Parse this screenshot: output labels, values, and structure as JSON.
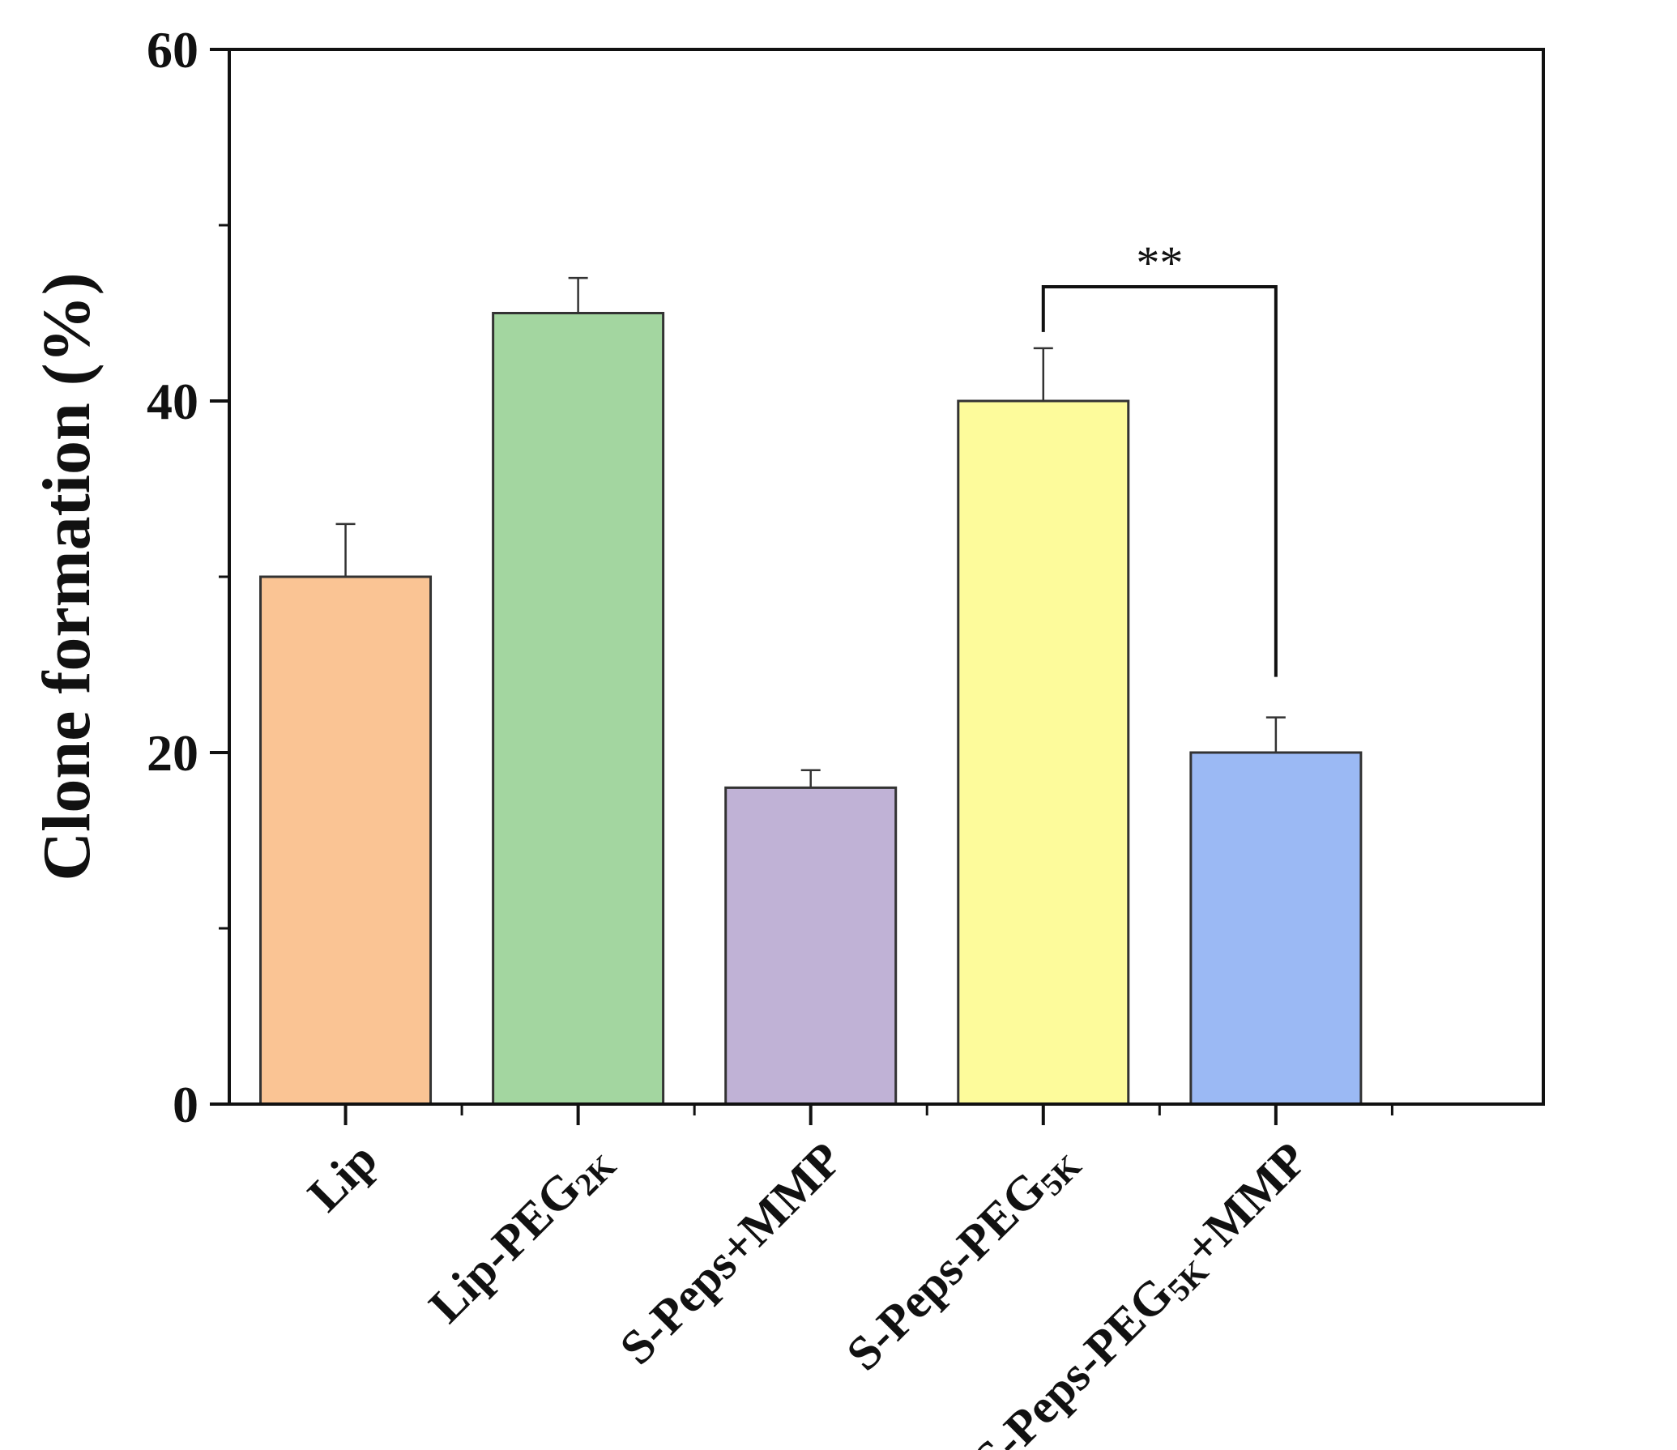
{
  "chart_data": {
    "type": "bar",
    "ylabel": "Clone formation (%)",
    "xlabel": "",
    "ylim": [
      0,
      60
    ],
    "yticks": [
      "0",
      "20",
      "40",
      "60"
    ],
    "categories": [
      {
        "base": "Lip",
        "sub": "",
        "suffix": ""
      },
      {
        "base": "Lip-PEG",
        "sub": "2K",
        "suffix": ""
      },
      {
        "base": "S-Peps+MMP",
        "sub": "",
        "suffix": ""
      },
      {
        "base": "S-Peps-PEG",
        "sub": "5K",
        "suffix": ""
      },
      {
        "base": "S-Peps-PEG",
        "sub": "5K",
        "suffix": "+MMP"
      }
    ],
    "values": [
      30,
      45,
      18,
      40,
      20
    ],
    "errors": [
      3,
      2,
      1,
      3,
      2
    ],
    "colors": [
      "#FAC494",
      "#A3D6A0",
      "#C0B2D6",
      "#FDFB9B",
      "#9BB9F4"
    ],
    "significance": {
      "from": 3,
      "to": 4,
      "label": "**"
    }
  }
}
